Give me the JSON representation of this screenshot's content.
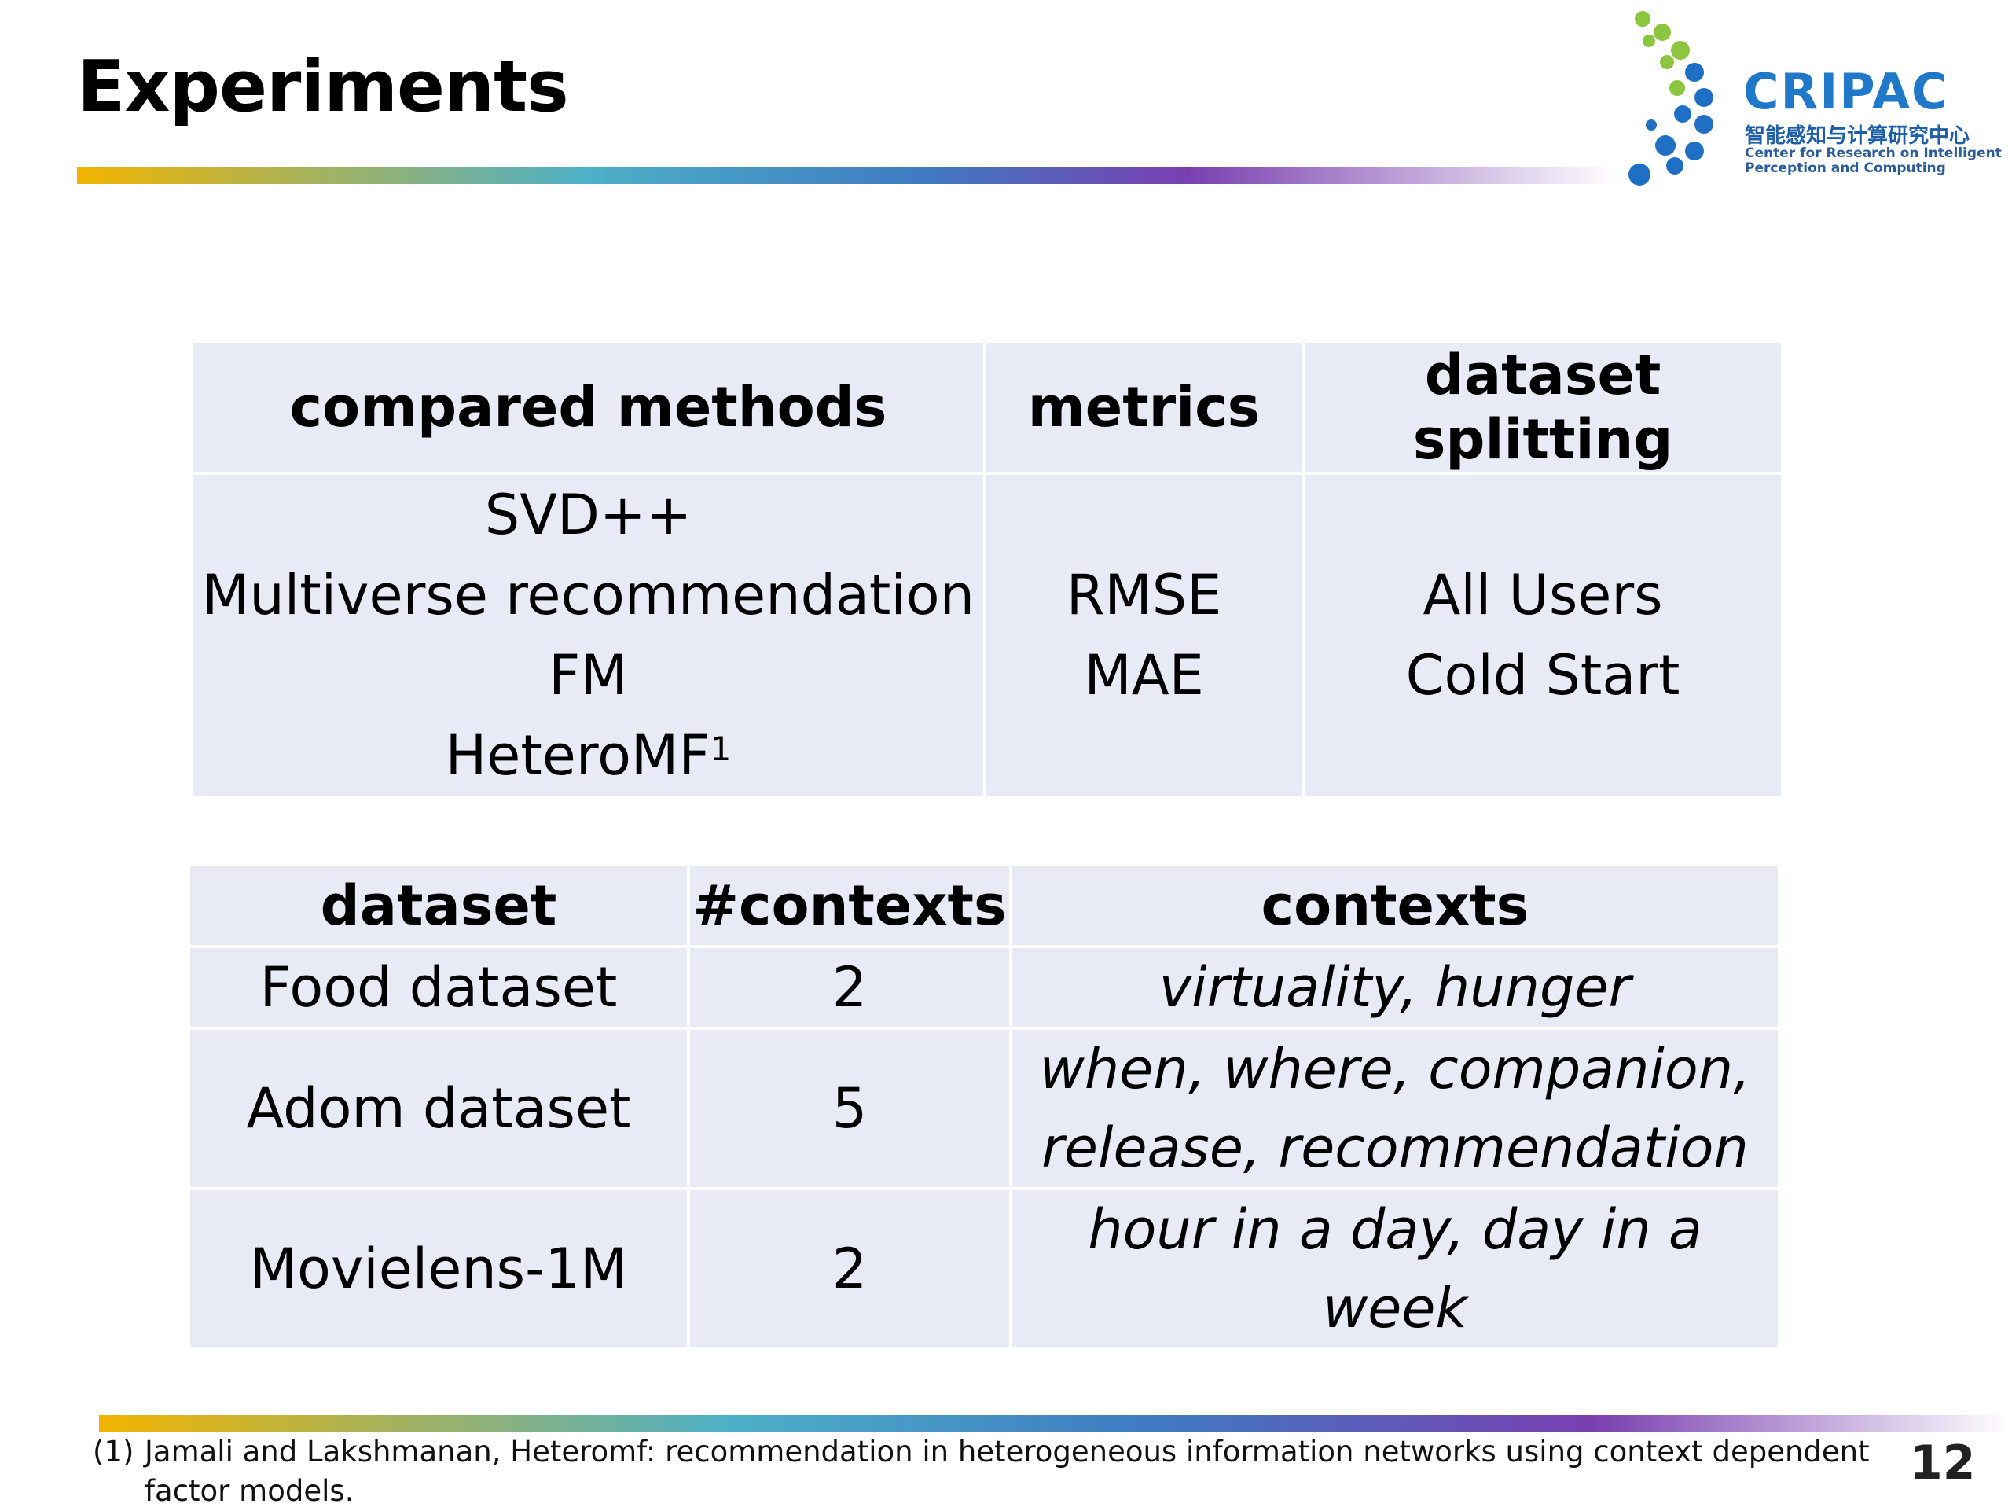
{
  "slide": {
    "title": "Experiments",
    "page_number": "12"
  },
  "logo": {
    "name": "CRIPAC",
    "chinese": "智能感知与计算研究中心",
    "english_line1": "Center for Research on Intelligent",
    "english_line2": "Perception and Computing",
    "colors": {
      "green": "#8cc63f",
      "blue": "#1f6fc4"
    }
  },
  "table1": {
    "headers": [
      "compared methods",
      "metrics",
      "dataset splitting"
    ],
    "methods": [
      "SVD++",
      "Multiverse recommendation",
      "FM",
      "HeteroMF"
    ],
    "method_superscript": "1",
    "metrics": [
      "RMSE",
      "MAE"
    ],
    "splitting": [
      "All Users",
      "Cold Start"
    ]
  },
  "table2": {
    "headers": [
      "dataset",
      "#contexts",
      "contexts"
    ],
    "rows": [
      {
        "dataset": "Food dataset",
        "count": "2",
        "contexts_line1": "virtuality, hunger",
        "contexts_line2": ""
      },
      {
        "dataset": "Adom dataset",
        "count": "5",
        "contexts_line1": "when, where, companion,",
        "contexts_line2": "release, recommendation"
      },
      {
        "dataset": "Movielens-1M",
        "count": "2",
        "contexts_line1": "hour in a day, day in a week",
        "contexts_line2": ""
      }
    ]
  },
  "footnote": {
    "number": "(1)",
    "text": "Jamali and Lakshmanan, Heteromf: recommendation in heterogeneous information networks using context dependent factor models."
  }
}
